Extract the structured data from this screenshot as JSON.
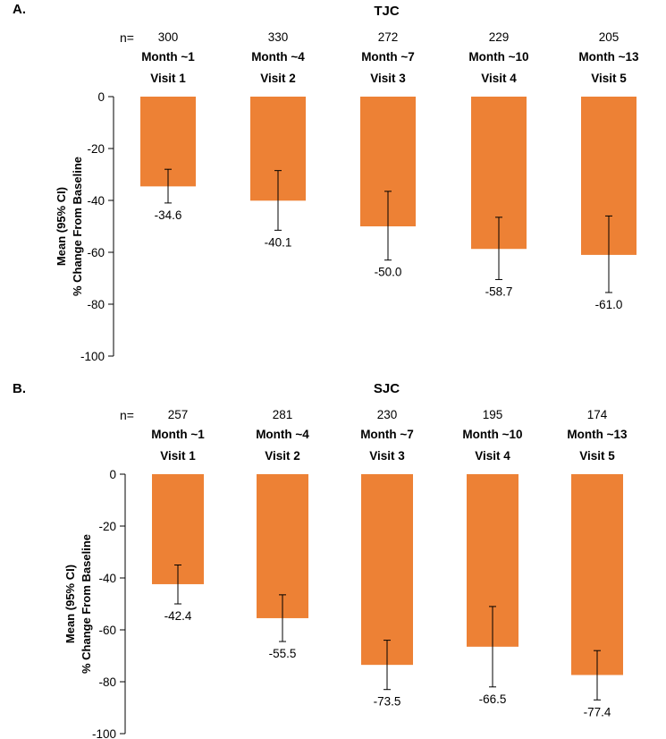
{
  "chart_data": [
    {
      "type": "bar",
      "panel_label": "A.",
      "title": "TJC",
      "n_prefix": "n=",
      "n": [
        "300",
        "330",
        "272",
        "229",
        "205"
      ],
      "months": [
        "Month ~1",
        "Month ~4",
        "Month ~7",
        "Month ~10",
        "Month ~13"
      ],
      "visits": [
        "Visit 1",
        "Visit 2",
        "Visit 3",
        "Visit 4",
        "Visit 5"
      ],
      "values": [
        -34.6,
        -40.1,
        -50.0,
        -58.7,
        -61.0
      ],
      "value_labels": [
        "-34.6",
        "-40.1",
        "-50.0",
        "-58.7",
        "-61.0"
      ],
      "ci_upper": [
        -28.0,
        -28.5,
        -36.5,
        -46.5,
        -46.0
      ],
      "ci_lower": [
        -41.0,
        -51.5,
        -63.0,
        -70.5,
        -75.5
      ],
      "ylabel_line1": "Mean (95% CI)",
      "ylabel_line2": "% Change From Baseline",
      "ylim": [
        -100,
        0
      ],
      "yticks": [
        0,
        -20,
        -40,
        -60,
        -80,
        -100
      ],
      "bar_color": "#ED8135"
    },
    {
      "type": "bar",
      "panel_label": "B.",
      "title": "SJC",
      "n_prefix": "n=",
      "n": [
        "257",
        "281",
        "230",
        "195",
        "174"
      ],
      "months": [
        "Month ~1",
        "Month ~4",
        "Month ~7",
        "Month ~10",
        "Month ~13"
      ],
      "visits": [
        "Visit 1",
        "Visit 2",
        "Visit 3",
        "Visit 4",
        "Visit 5"
      ],
      "values": [
        -42.4,
        -55.5,
        -73.5,
        -66.5,
        -77.4
      ],
      "value_labels": [
        "-42.4",
        "-55.5",
        "-73.5",
        "-66.5",
        "-77.4"
      ],
      "ci_upper": [
        -35.0,
        -46.5,
        -64.0,
        -51.0,
        -68.0
      ],
      "ci_lower": [
        -50.0,
        -64.5,
        -83.0,
        -82.0,
        -87.0
      ],
      "ylabel_line1": "Mean (95% CI)",
      "ylabel_line2": "% Change From Baseline",
      "ylim": [
        -100,
        0
      ],
      "yticks": [
        0,
        -20,
        -40,
        -60,
        -80,
        -100
      ],
      "bar_color": "#ED8135"
    }
  ]
}
